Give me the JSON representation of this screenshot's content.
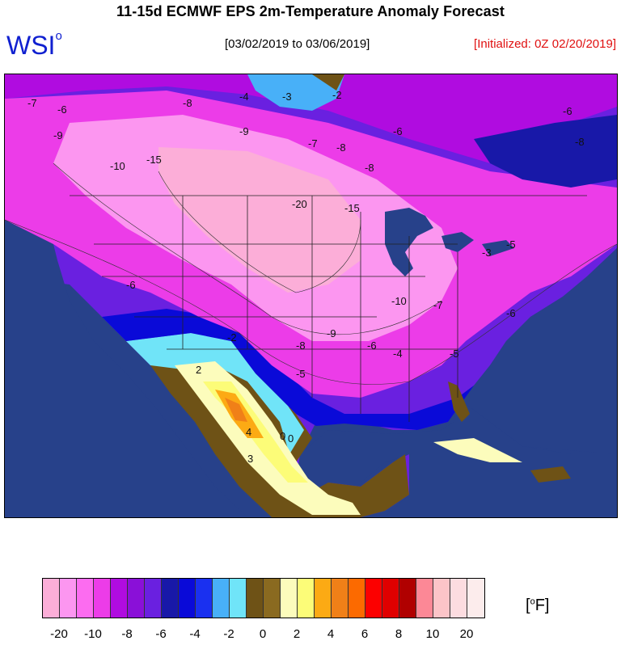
{
  "header": {
    "title": "11-15d ECMWF EPS 2m-Temperature Anomaly Forecast",
    "logo": "WSI",
    "logo_mark": "o",
    "date_range": "[03/02/2019 to 03/06/2019]",
    "initialized": "[Initialized: 0Z 02/20/2019]"
  },
  "map": {
    "ocean_color": "#27418a",
    "contour_labels": [
      "-7",
      "-6",
      "-4",
      "-3",
      "-2",
      "-9",
      "-8",
      "-6",
      "-10",
      "-15",
      "-20",
      "-15",
      "-9",
      "-7",
      "-5",
      "-6",
      "-8",
      "-6",
      "-8",
      "-8",
      "-9",
      "-10",
      "-8",
      "-6",
      "-5",
      "-4",
      "-5",
      "-7",
      "-6",
      "-2",
      "0",
      "2",
      "3",
      "4",
      "0",
      "-3"
    ]
  },
  "legend": {
    "unit": "[",
    "unit_mark": "o",
    "unit_letter": "F]",
    "swatches": [
      "#fcaed8",
      "#fc96f0",
      "#fc6cf0",
      "#ec3ce8",
      "#b00ce0",
      "#8a10d8",
      "#6a20e0",
      "#1818a8",
      "#0a0ad8",
      "#1a30f0",
      "#48b0f8",
      "#70e4f8",
      "#6e5216",
      "#8a6a20",
      "#fcfcbc",
      "#fcfc78",
      "#fcaa14",
      "#f08018",
      "#fc6a00",
      "#fc0000",
      "#e00000",
      "#b00000",
      "#fc8896",
      "#fcc4c8",
      "#fcdce0",
      "#fcecec"
    ],
    "ticks": [
      "-20",
      "-10",
      "-8",
      "-6",
      "-4",
      "-2",
      "0",
      "2",
      "4",
      "6",
      "8",
      "10",
      "20"
    ]
  }
}
